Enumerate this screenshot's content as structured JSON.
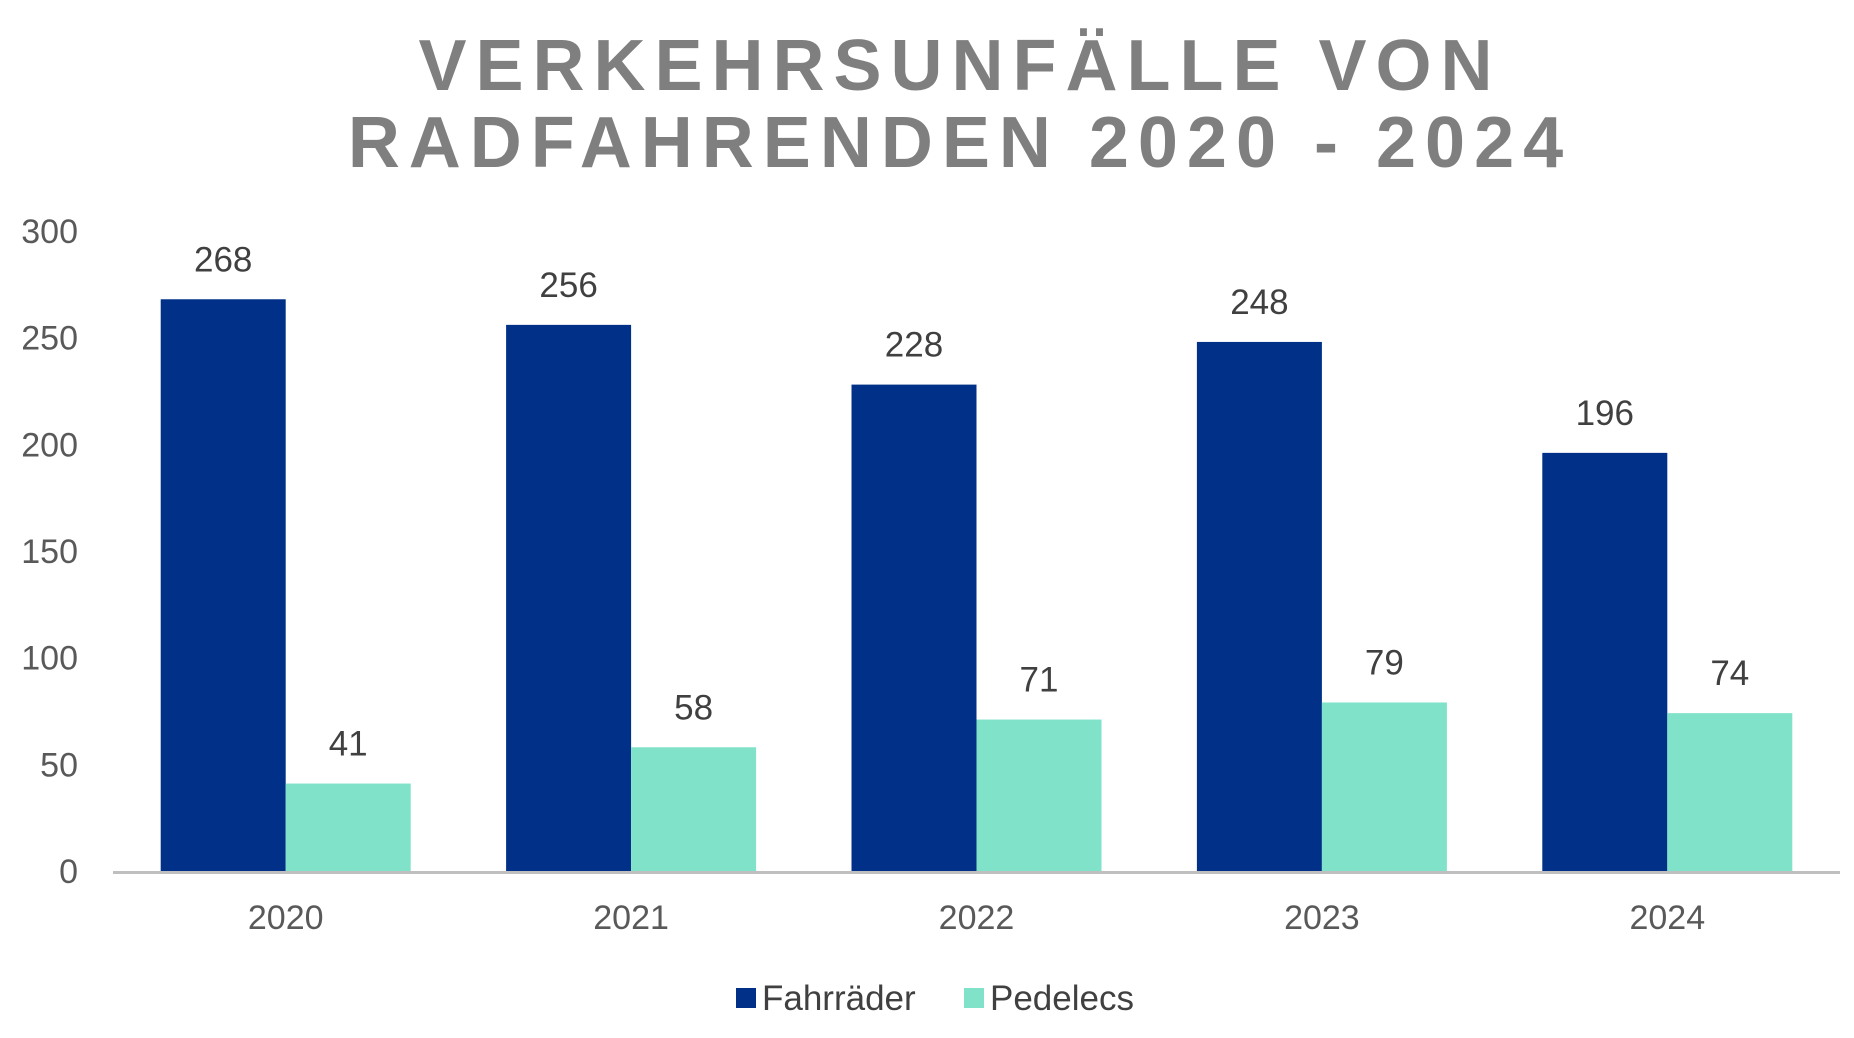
{
  "chart_data": {
    "type": "bar",
    "title_lines": [
      "VERKEHRSUNFÄLLE VON",
      "RADFAHRENDEN 2020 - 2024"
    ],
    "categories": [
      "2020",
      "2021",
      "2022",
      "2023",
      "2024"
    ],
    "series": [
      {
        "name": "Fahrräder",
        "color": "#003087",
        "values": [
          268,
          256,
          228,
          248,
          196
        ]
      },
      {
        "name": "Pedelecs",
        "color": "#80e3c9",
        "values": [
          41,
          58,
          71,
          79,
          74
        ]
      }
    ],
    "ylim": [
      0,
      300
    ],
    "yticks": [
      0,
      50,
      100,
      150,
      200,
      250,
      300
    ],
    "xlabel": "",
    "ylabel": "",
    "grid": false,
    "legend_position": "bottom",
    "axis_color": "#bfbfbf",
    "title_color": "#7f7f7f"
  }
}
